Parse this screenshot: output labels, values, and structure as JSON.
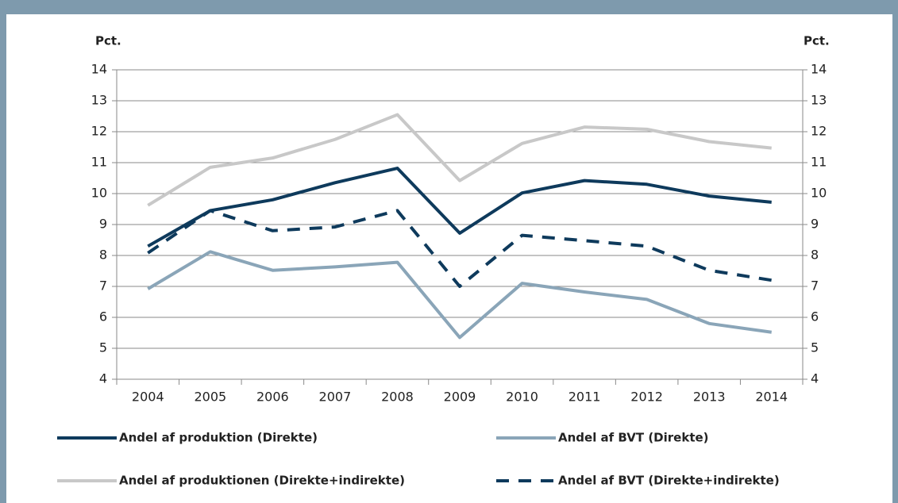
{
  "chart_data": {
    "type": "line",
    "ylabel": "Pct.",
    "y2label": "Pct.",
    "categories": [
      "2004",
      "2005",
      "2006",
      "2007",
      "2008",
      "2009",
      "2010",
      "2011",
      "2012",
      "2013",
      "2014"
    ],
    "series": [
      {
        "name": "Andel af produktion (Direkte)",
        "color": "#0e3a5c",
        "dashed": false,
        "values": [
          8.3,
          9.45,
          9.8,
          10.35,
          10.82,
          8.72,
          10.02,
          10.42,
          10.3,
          9.92,
          9.72
        ]
      },
      {
        "name": "Andel af BVT (Direkte)",
        "color": "#8aa5b8",
        "dashed": false,
        "values": [
          6.92,
          8.12,
          7.52,
          7.63,
          7.78,
          5.35,
          7.1,
          6.82,
          6.58,
          5.8,
          5.52
        ]
      },
      {
        "name": "Andel af produktionen (Direkte+indirekte)",
        "color": "#c8c8c8",
        "dashed": false,
        "values": [
          9.62,
          10.85,
          11.15,
          11.75,
          12.55,
          10.42,
          11.62,
          12.15,
          12.08,
          11.68,
          11.47
        ]
      },
      {
        "name": "Andel af BVT (Direkte+indirekte)",
        "color": "#0e3a5c",
        "dashed": true,
        "values": [
          8.08,
          9.45,
          8.8,
          8.92,
          9.45,
          7.0,
          8.65,
          8.48,
          8.3,
          7.52,
          7.2
        ]
      }
    ],
    "ylim": [
      4,
      14
    ],
    "yticks": [
      4,
      5,
      6,
      7,
      8,
      9,
      10,
      11,
      12,
      13,
      14
    ],
    "y2lim": [
      4,
      14
    ],
    "y2ticks": [
      4,
      5,
      6,
      7,
      8,
      9,
      10,
      11,
      12,
      13,
      14
    ],
    "grid": true,
    "legend": "bottom"
  }
}
